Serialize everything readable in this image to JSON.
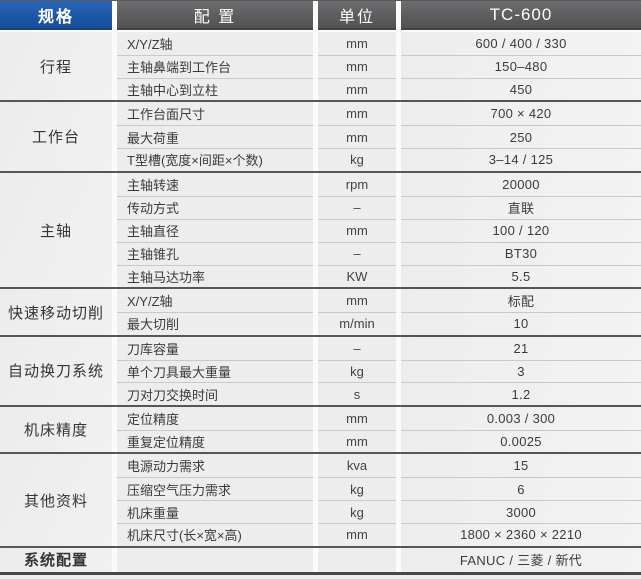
{
  "header": {
    "spec": "规格",
    "config": "配 置",
    "unit": "单位",
    "model": "TC-600"
  },
  "groups": [
    {
      "name": "行程",
      "rows": [
        {
          "label": "X/Y/Z轴",
          "unit": "mm",
          "value": "600 / 400 / 330"
        },
        {
          "label": "主轴鼻端到工作台",
          "unit": "mm",
          "value": "150–480"
        },
        {
          "label": "主轴中心到立柱",
          "unit": "mm",
          "value": "450"
        }
      ]
    },
    {
      "name": "工作台",
      "rows": [
        {
          "label": "工作台面尺寸",
          "unit": "mm",
          "value": "700 × 420"
        },
        {
          "label": "最大荷重",
          "unit": "mm",
          "value": "250"
        },
        {
          "label": "T型槽(宽度×间距×个数)",
          "unit": "kg",
          "value": "3–14 / 125"
        }
      ]
    },
    {
      "name": "主轴",
      "rows": [
        {
          "label": "主轴转速",
          "unit": "rpm",
          "value": "20000"
        },
        {
          "label": "传动方式",
          "unit": "–",
          "value": "直联"
        },
        {
          "label": "主轴直径",
          "unit": "mm",
          "value": "100 / 120"
        },
        {
          "label": "主轴锥孔",
          "unit": "–",
          "value": "BT30"
        },
        {
          "label": "主轴马达功率",
          "unit": "KW",
          "value": "5.5"
        }
      ]
    },
    {
      "name": "快速移动切削",
      "rows": [
        {
          "label": "X/Y/Z轴",
          "unit": "mm",
          "value": "标配"
        },
        {
          "label": "最大切削",
          "unit": "m/min",
          "value": "10"
        }
      ]
    },
    {
      "name": "自动换刀系统",
      "rows": [
        {
          "label": "刀库容量",
          "unit": "–",
          "value": "21"
        },
        {
          "label": "单个刀具最大重量",
          "unit": "kg",
          "value": "3"
        },
        {
          "label": "刀对刀交换时间",
          "unit": "s",
          "value": "1.2"
        }
      ]
    },
    {
      "name": "机床精度",
      "rows": [
        {
          "label": "定位精度",
          "unit": "mm",
          "value": "0.003 / 300"
        },
        {
          "label": "重复定位精度",
          "unit": "mm",
          "value": "0.0025"
        }
      ]
    },
    {
      "name": "其他资料",
      "rows": [
        {
          "label": "电源动力需求",
          "unit": "kva",
          "value": "15"
        },
        {
          "label": "压缩空气压力需求",
          "unit": "kg",
          "value": "6"
        },
        {
          "label": "机床重量",
          "unit": "kg",
          "value": "3000"
        },
        {
          "label": "机床尺寸(长×宽×高)",
          "unit": "mm",
          "value": "1800 × 2360 × 2210"
        }
      ]
    },
    {
      "name": "系统配置",
      "rows": [
        {
          "label": "",
          "unit": "",
          "value": "FANUC / 三菱 / 新代"
        }
      ]
    }
  ],
  "colors": {
    "spec_header_blue": "#1d57a8",
    "header_gray": "#5d5d5f",
    "header_text": "#ffffff",
    "cell_bg": "#ededee",
    "row_line": "#c9c9ca",
    "group_separator": "#55555a",
    "body_text": "#3b3b3d"
  }
}
